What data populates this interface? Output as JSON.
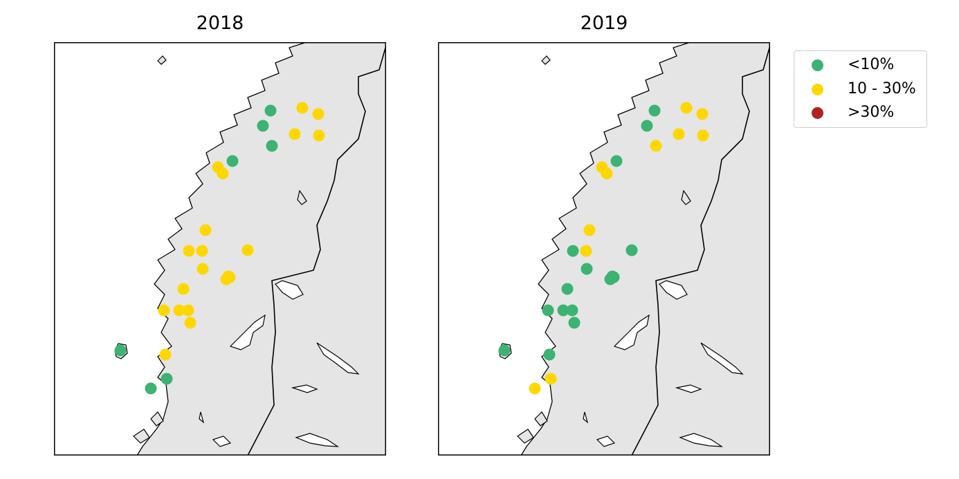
{
  "colors": {
    "low": "#3cb371",
    "mid": "#ffd700",
    "high": "#b22222",
    "land": "#e5e5e5",
    "coast": "#000000"
  },
  "legend": [
    {
      "label": "<10%",
      "color": "#3cb371"
    },
    {
      "label": "10 - 30%",
      "color": "#ffd700"
    },
    {
      "label": ">30%",
      "color": "#b22222"
    }
  ],
  "panels": [
    {
      "title": "2018",
      "sites": [
        {
          "id": "s01",
          "cat": "low"
        },
        {
          "id": "s02",
          "cat": "mid"
        },
        {
          "id": "s03",
          "cat": "mid"
        },
        {
          "id": "s04",
          "cat": "low"
        },
        {
          "id": "s05",
          "cat": "mid"
        },
        {
          "id": "s06",
          "cat": "mid"
        },
        {
          "id": "s07",
          "cat": "low"
        },
        {
          "id": "s08",
          "cat": "low"
        },
        {
          "id": "s09",
          "cat": "mid"
        },
        {
          "id": "s10",
          "cat": "mid"
        },
        {
          "id": "s11",
          "cat": "mid"
        },
        {
          "id": "s12",
          "cat": "mid"
        },
        {
          "id": "s13",
          "cat": "mid"
        },
        {
          "id": "s14",
          "cat": "mid"
        },
        {
          "id": "s15",
          "cat": "mid"
        },
        {
          "id": "s16",
          "cat": "mid"
        },
        {
          "id": "s17",
          "cat": "mid"
        },
        {
          "id": "s18",
          "cat": "mid"
        },
        {
          "id": "s19",
          "cat": "mid"
        },
        {
          "id": "s20",
          "cat": "mid"
        },
        {
          "id": "s21",
          "cat": "mid"
        },
        {
          "id": "s22",
          "cat": "mid"
        },
        {
          "id": "s23",
          "cat": "mid"
        },
        {
          "id": "s24",
          "cat": "low"
        },
        {
          "id": "s25",
          "cat": "mid"
        },
        {
          "id": "s26",
          "cat": "low"
        },
        {
          "id": "s27",
          "cat": "low"
        }
      ]
    },
    {
      "title": "2019",
      "sites": [
        {
          "id": "s01",
          "cat": "low"
        },
        {
          "id": "s02",
          "cat": "mid"
        },
        {
          "id": "s03",
          "cat": "mid"
        },
        {
          "id": "s04",
          "cat": "low"
        },
        {
          "id": "s05",
          "cat": "mid"
        },
        {
          "id": "s06",
          "cat": "mid"
        },
        {
          "id": "s07",
          "cat": "mid"
        },
        {
          "id": "s08",
          "cat": "low"
        },
        {
          "id": "s09",
          "cat": "mid"
        },
        {
          "id": "s10",
          "cat": "mid"
        },
        {
          "id": "s11",
          "cat": "mid"
        },
        {
          "id": "s12",
          "cat": "low"
        },
        {
          "id": "s13",
          "cat": "mid"
        },
        {
          "id": "s14",
          "cat": "low"
        },
        {
          "id": "s15",
          "cat": "low"
        },
        {
          "id": "s16",
          "cat": "low"
        },
        {
          "id": "s17",
          "cat": "low"
        },
        {
          "id": "s18",
          "cat": "low"
        },
        {
          "id": "s19",
          "cat": "low"
        },
        {
          "id": "s20",
          "cat": "low"
        },
        {
          "id": "s21",
          "cat": "low"
        },
        {
          "id": "s22",
          "cat": "low"
        },
        {
          "id": "s23",
          "cat": "low"
        },
        {
          "id": "s24",
          "cat": "low"
        },
        {
          "id": "s25",
          "cat": "low"
        },
        {
          "id": "s26",
          "cat": "mid"
        },
        {
          "id": "s27",
          "cat": "mid"
        }
      ]
    }
  ]
}
